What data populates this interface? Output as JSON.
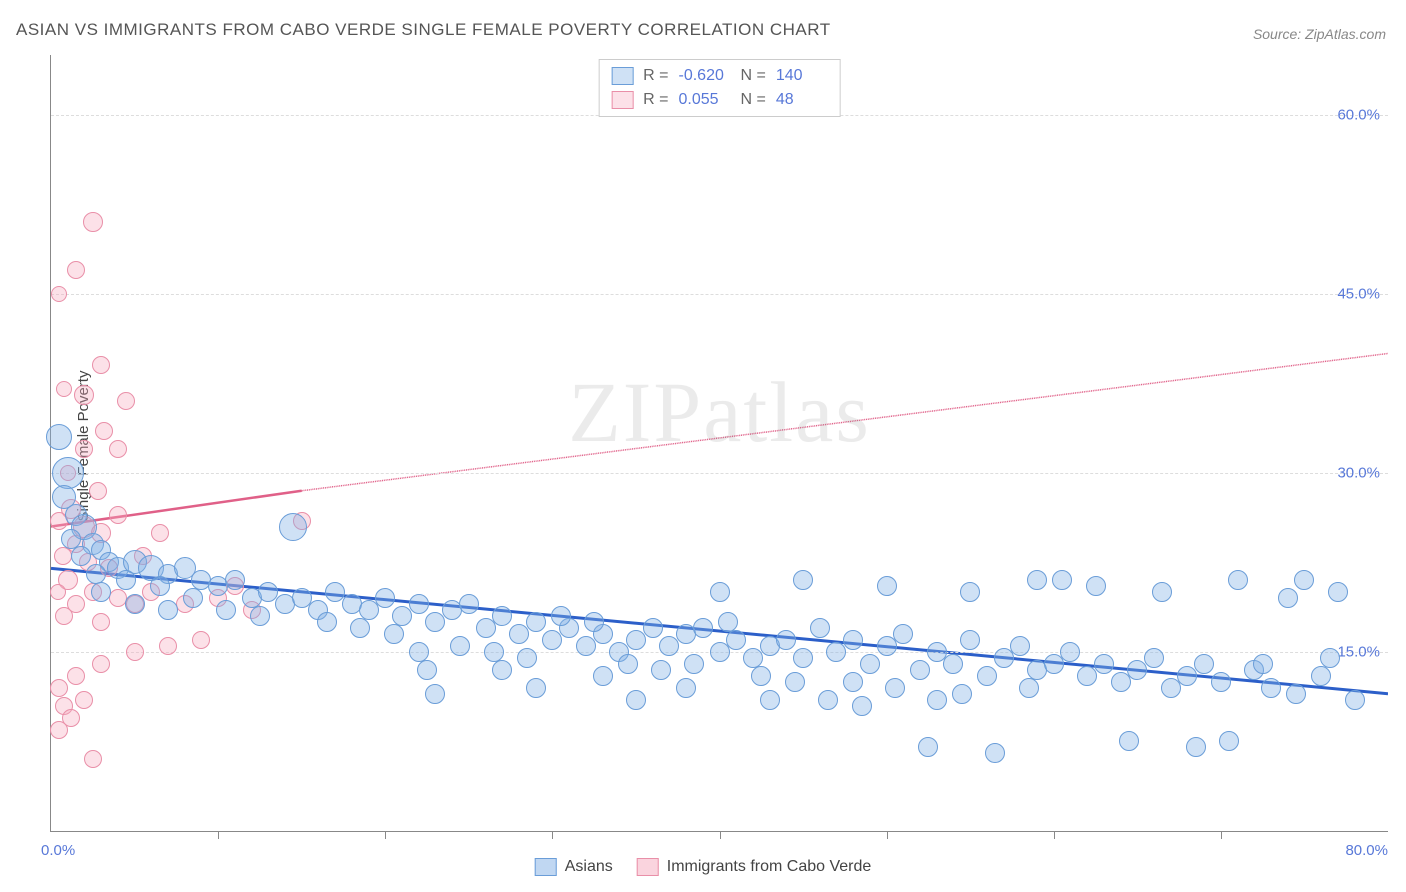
{
  "title": "ASIAN VS IMMIGRANTS FROM CABO VERDE SINGLE FEMALE POVERTY CORRELATION CHART",
  "source": "Source: ZipAtlas.com",
  "y_axis_label": "Single Female Poverty",
  "watermark": {
    "bold": "ZIP",
    "light": "atlas"
  },
  "chart": {
    "type": "scatter",
    "xlim": [
      0,
      80
    ],
    "ylim": [
      0,
      65
    ],
    "x_origin_label": "0.0%",
    "x_max_label": "80.0%",
    "x_ticks": [
      10,
      20,
      30,
      40,
      50,
      60,
      70
    ],
    "y_ticks": [
      {
        "val": 15,
        "label": "15.0%"
      },
      {
        "val": 30,
        "label": "30.0%"
      },
      {
        "val": 45,
        "label": "45.0%"
      },
      {
        "val": 60,
        "label": "60.0%"
      }
    ],
    "grid_color": "#dddddd",
    "background": "#ffffff",
    "series": [
      {
        "name": "Immigrants from Cabo Verde",
        "fill": "rgba(245,170,190,0.35)",
        "stroke": "#e98fa8",
        "stroke_width": 1.4,
        "trend": {
          "x1": 0,
          "y1": 25.5,
          "x2": 15,
          "y2": 28.5,
          "color": "#e06088",
          "width": 2.5,
          "dash_ext_x2": 80,
          "dash_ext_y2": 40
        },
        "stats": {
          "R": "0.055",
          "N": "48"
        },
        "points": [
          {
            "x": 2.5,
            "y": 51,
            "r": 10
          },
          {
            "x": 1.5,
            "y": 47,
            "r": 9
          },
          {
            "x": 0.5,
            "y": 45,
            "r": 8
          },
          {
            "x": 3,
            "y": 39,
            "r": 9
          },
          {
            "x": 2,
            "y": 36.5,
            "r": 10
          },
          {
            "x": 0.8,
            "y": 37,
            "r": 8
          },
          {
            "x": 4.5,
            "y": 36,
            "r": 9
          },
          {
            "x": 3.2,
            "y": 33.5,
            "r": 9
          },
          {
            "x": 2,
            "y": 32,
            "r": 9
          },
          {
            "x": 4,
            "y": 32,
            "r": 9
          },
          {
            "x": 1,
            "y": 30,
            "r": 8
          },
          {
            "x": 2.8,
            "y": 28.5,
            "r": 9
          },
          {
            "x": 1.2,
            "y": 27,
            "r": 10
          },
          {
            "x": 0.5,
            "y": 26,
            "r": 9
          },
          {
            "x": 2,
            "y": 25.5,
            "r": 11
          },
          {
            "x": 3,
            "y": 25,
            "r": 10
          },
          {
            "x": 1.5,
            "y": 24,
            "r": 9
          },
          {
            "x": 0.7,
            "y": 23,
            "r": 9
          },
          {
            "x": 2.2,
            "y": 22.5,
            "r": 9
          },
          {
            "x": 3.5,
            "y": 22,
            "r": 9
          },
          {
            "x": 1,
            "y": 21,
            "r": 10
          },
          {
            "x": 0.4,
            "y": 20,
            "r": 8
          },
          {
            "x": 2.5,
            "y": 20,
            "r": 9
          },
          {
            "x": 4,
            "y": 19.5,
            "r": 9
          },
          {
            "x": 1.5,
            "y": 19,
            "r": 9
          },
          {
            "x": 0.8,
            "y": 18,
            "r": 9
          },
          {
            "x": 3,
            "y": 17.5,
            "r": 9
          },
          {
            "x": 5,
            "y": 19,
            "r": 9
          },
          {
            "x": 6,
            "y": 20,
            "r": 9
          },
          {
            "x": 8,
            "y": 19,
            "r": 9
          },
          {
            "x": 10,
            "y": 19.5,
            "r": 9
          },
          {
            "x": 12,
            "y": 18.5,
            "r": 9
          },
          {
            "x": 9,
            "y": 16,
            "r": 9
          },
          {
            "x": 7,
            "y": 15.5,
            "r": 9
          },
          {
            "x": 5,
            "y": 15,
            "r": 9
          },
          {
            "x": 3,
            "y": 14,
            "r": 9
          },
          {
            "x": 1.5,
            "y": 13,
            "r": 9
          },
          {
            "x": 0.5,
            "y": 12,
            "r": 9
          },
          {
            "x": 2,
            "y": 11,
            "r": 9
          },
          {
            "x": 0.8,
            "y": 10.5,
            "r": 9
          },
          {
            "x": 1.2,
            "y": 9.5,
            "r": 9
          },
          {
            "x": 0.5,
            "y": 8.5,
            "r": 9
          },
          {
            "x": 2.5,
            "y": 6,
            "r": 9
          },
          {
            "x": 15,
            "y": 26,
            "r": 9
          },
          {
            "x": 4,
            "y": 26.5,
            "r": 9
          },
          {
            "x": 6.5,
            "y": 25,
            "r": 9
          },
          {
            "x": 5.5,
            "y": 23,
            "r": 9
          },
          {
            "x": 11,
            "y": 20.5,
            "r": 9
          }
        ]
      },
      {
        "name": "Asians",
        "fill": "rgba(130,175,230,0.38)",
        "stroke": "#6a9dd8",
        "stroke_width": 1.4,
        "trend": {
          "x1": 0,
          "y1": 22,
          "x2": 80,
          "y2": 11.5,
          "color": "#2c5fc9",
          "width": 3
        },
        "stats": {
          "R": "-0.620",
          "N": "140"
        },
        "points": [
          {
            "x": 0.5,
            "y": 33,
            "r": 13
          },
          {
            "x": 1,
            "y": 30,
            "r": 16
          },
          {
            "x": 0.8,
            "y": 28,
            "r": 12
          },
          {
            "x": 1.5,
            "y": 26.5,
            "r": 11
          },
          {
            "x": 2,
            "y": 25.5,
            "r": 13
          },
          {
            "x": 1.2,
            "y": 24.5,
            "r": 10
          },
          {
            "x": 2.5,
            "y": 24,
            "r": 11
          },
          {
            "x": 3,
            "y": 23.5,
            "r": 10
          },
          {
            "x": 1.8,
            "y": 23,
            "r": 10
          },
          {
            "x": 3.5,
            "y": 22.5,
            "r": 10
          },
          {
            "x": 4,
            "y": 22,
            "r": 11
          },
          {
            "x": 2.7,
            "y": 21.5,
            "r": 10
          },
          {
            "x": 5,
            "y": 22.5,
            "r": 12
          },
          {
            "x": 6,
            "y": 22,
            "r": 13
          },
          {
            "x": 4.5,
            "y": 21,
            "r": 10
          },
          {
            "x": 7,
            "y": 21.5,
            "r": 10
          },
          {
            "x": 8,
            "y": 22,
            "r": 11
          },
          {
            "x": 6.5,
            "y": 20.5,
            "r": 10
          },
          {
            "x": 9,
            "y": 21,
            "r": 10
          },
          {
            "x": 10,
            "y": 20.5,
            "r": 10
          },
          {
            "x": 8.5,
            "y": 19.5,
            "r": 10
          },
          {
            "x": 11,
            "y": 21,
            "r": 10
          },
          {
            "x": 12,
            "y": 19.5,
            "r": 10
          },
          {
            "x": 10.5,
            "y": 18.5,
            "r": 10
          },
          {
            "x": 13,
            "y": 20,
            "r": 10
          },
          {
            "x": 14,
            "y": 19,
            "r": 10
          },
          {
            "x": 12.5,
            "y": 18,
            "r": 10
          },
          {
            "x": 15,
            "y": 19.5,
            "r": 10
          },
          {
            "x": 14.5,
            "y": 25.5,
            "r": 14
          },
          {
            "x": 16,
            "y": 18.5,
            "r": 10
          },
          {
            "x": 17,
            "y": 20,
            "r": 10
          },
          {
            "x": 18,
            "y": 19,
            "r": 10
          },
          {
            "x": 16.5,
            "y": 17.5,
            "r": 10
          },
          {
            "x": 19,
            "y": 18.5,
            "r": 10
          },
          {
            "x": 20,
            "y": 19.5,
            "r": 10
          },
          {
            "x": 18.5,
            "y": 17,
            "r": 10
          },
          {
            "x": 21,
            "y": 18,
            "r": 10
          },
          {
            "x": 22,
            "y": 19,
            "r": 10
          },
          {
            "x": 20.5,
            "y": 16.5,
            "r": 10
          },
          {
            "x": 23,
            "y": 17.5,
            "r": 10
          },
          {
            "x": 24,
            "y": 18.5,
            "r": 10
          },
          {
            "x": 22.5,
            "y": 13.5,
            "r": 10
          },
          {
            "x": 25,
            "y": 19,
            "r": 10
          },
          {
            "x": 26,
            "y": 17,
            "r": 10
          },
          {
            "x": 24.5,
            "y": 15.5,
            "r": 10
          },
          {
            "x": 27,
            "y": 18,
            "r": 10
          },
          {
            "x": 28,
            "y": 16.5,
            "r": 10
          },
          {
            "x": 26.5,
            "y": 15,
            "r": 10
          },
          {
            "x": 29,
            "y": 17.5,
            "r": 10
          },
          {
            "x": 30,
            "y": 16,
            "r": 10
          },
          {
            "x": 28.5,
            "y": 14.5,
            "r": 10
          },
          {
            "x": 31,
            "y": 17,
            "r": 10
          },
          {
            "x": 32,
            "y": 15.5,
            "r": 10
          },
          {
            "x": 30.5,
            "y": 18,
            "r": 10
          },
          {
            "x": 33,
            "y": 16.5,
            "r": 10
          },
          {
            "x": 34,
            "y": 15,
            "r": 10
          },
          {
            "x": 32.5,
            "y": 17.5,
            "r": 10
          },
          {
            "x": 35,
            "y": 16,
            "r": 10
          },
          {
            "x": 36,
            "y": 17,
            "r": 10
          },
          {
            "x": 34.5,
            "y": 14,
            "r": 10
          },
          {
            "x": 37,
            "y": 15.5,
            "r": 10
          },
          {
            "x": 38,
            "y": 16.5,
            "r": 10
          },
          {
            "x": 36.5,
            "y": 13.5,
            "r": 10
          },
          {
            "x": 39,
            "y": 17,
            "r": 10
          },
          {
            "x": 40,
            "y": 15,
            "r": 10
          },
          {
            "x": 38.5,
            "y": 14,
            "r": 10
          },
          {
            "x": 41,
            "y": 16,
            "r": 10
          },
          {
            "x": 42,
            "y": 14.5,
            "r": 10
          },
          {
            "x": 40.5,
            "y": 17.5,
            "r": 10
          },
          {
            "x": 43,
            "y": 15.5,
            "r": 10
          },
          {
            "x": 44,
            "y": 16,
            "r": 10
          },
          {
            "x": 42.5,
            "y": 13,
            "r": 10
          },
          {
            "x": 45,
            "y": 14.5,
            "r": 10
          },
          {
            "x": 46,
            "y": 17,
            "r": 10
          },
          {
            "x": 44.5,
            "y": 12.5,
            "r": 10
          },
          {
            "x": 47,
            "y": 15,
            "r": 10
          },
          {
            "x": 48,
            "y": 16,
            "r": 10
          },
          {
            "x": 46.5,
            "y": 11,
            "r": 10
          },
          {
            "x": 49,
            "y": 14,
            "r": 10
          },
          {
            "x": 50,
            "y": 15.5,
            "r": 10
          },
          {
            "x": 48.5,
            "y": 10.5,
            "r": 10
          },
          {
            "x": 51,
            "y": 16.5,
            "r": 10
          },
          {
            "x": 52,
            "y": 13.5,
            "r": 10
          },
          {
            "x": 50.5,
            "y": 12,
            "r": 10
          },
          {
            "x": 53,
            "y": 15,
            "r": 10
          },
          {
            "x": 54,
            "y": 14,
            "r": 10
          },
          {
            "x": 52.5,
            "y": 7,
            "r": 10
          },
          {
            "x": 55,
            "y": 16,
            "r": 10
          },
          {
            "x": 56,
            "y": 13,
            "r": 10
          },
          {
            "x": 54.5,
            "y": 11.5,
            "r": 10
          },
          {
            "x": 57,
            "y": 14.5,
            "r": 10
          },
          {
            "x": 58,
            "y": 15.5,
            "r": 10
          },
          {
            "x": 56.5,
            "y": 6.5,
            "r": 10
          },
          {
            "x": 59,
            "y": 13.5,
            "r": 10
          },
          {
            "x": 60,
            "y": 14,
            "r": 10
          },
          {
            "x": 58.5,
            "y": 12,
            "r": 10
          },
          {
            "x": 61,
            "y": 15,
            "r": 10
          },
          {
            "x": 62,
            "y": 13,
            "r": 10
          },
          {
            "x": 60.5,
            "y": 21,
            "r": 10
          },
          {
            "x": 63,
            "y": 14,
            "r": 10
          },
          {
            "x": 64,
            "y": 12.5,
            "r": 10
          },
          {
            "x": 62.5,
            "y": 20.5,
            "r": 10
          },
          {
            "x": 65,
            "y": 13.5,
            "r": 10
          },
          {
            "x": 66,
            "y": 14.5,
            "r": 10
          },
          {
            "x": 64.5,
            "y": 7.5,
            "r": 10
          },
          {
            "x": 67,
            "y": 12,
            "r": 10
          },
          {
            "x": 68,
            "y": 13,
            "r": 10
          },
          {
            "x": 66.5,
            "y": 20,
            "r": 10
          },
          {
            "x": 69,
            "y": 14,
            "r": 10
          },
          {
            "x": 70,
            "y": 12.5,
            "r": 10
          },
          {
            "x": 68.5,
            "y": 7,
            "r": 10
          },
          {
            "x": 71,
            "y": 21,
            "r": 10
          },
          {
            "x": 72,
            "y": 13.5,
            "r": 10
          },
          {
            "x": 70.5,
            "y": 7.5,
            "r": 10
          },
          {
            "x": 73,
            "y": 12,
            "r": 10
          },
          {
            "x": 74,
            "y": 19.5,
            "r": 10
          },
          {
            "x": 72.5,
            "y": 14,
            "r": 10
          },
          {
            "x": 75,
            "y": 21,
            "r": 10
          },
          {
            "x": 76,
            "y": 13,
            "r": 10
          },
          {
            "x": 74.5,
            "y": 11.5,
            "r": 10
          },
          {
            "x": 77,
            "y": 20,
            "r": 10
          },
          {
            "x": 78,
            "y": 11,
            "r": 10
          },
          {
            "x": 76.5,
            "y": 14.5,
            "r": 10
          },
          {
            "x": 23,
            "y": 11.5,
            "r": 10
          },
          {
            "x": 29,
            "y": 12,
            "r": 10
          },
          {
            "x": 35,
            "y": 11,
            "r": 10
          },
          {
            "x": 40,
            "y": 20,
            "r": 10
          },
          {
            "x": 45,
            "y": 21,
            "r": 10
          },
          {
            "x": 50,
            "y": 20.5,
            "r": 10
          },
          {
            "x": 55,
            "y": 20,
            "r": 10
          },
          {
            "x": 59,
            "y": 21,
            "r": 10
          },
          {
            "x": 22,
            "y": 15,
            "r": 10
          },
          {
            "x": 27,
            "y": 13.5,
            "r": 10
          },
          {
            "x": 33,
            "y": 13,
            "r": 10
          },
          {
            "x": 38,
            "y": 12,
            "r": 10
          },
          {
            "x": 43,
            "y": 11,
            "r": 10
          },
          {
            "x": 48,
            "y": 12.5,
            "r": 10
          },
          {
            "x": 53,
            "y": 11,
            "r": 10
          },
          {
            "x": 3,
            "y": 20,
            "r": 10
          },
          {
            "x": 5,
            "y": 19,
            "r": 10
          },
          {
            "x": 7,
            "y": 18.5,
            "r": 10
          }
        ]
      }
    ]
  },
  "legend_bottom": [
    {
      "label": "Asians",
      "fill": "rgba(130,175,230,0.5)",
      "stroke": "#6a9dd8"
    },
    {
      "label": "Immigrants from Cabo Verde",
      "fill": "rgba(245,170,190,0.5)",
      "stroke": "#e98fa8"
    }
  ]
}
